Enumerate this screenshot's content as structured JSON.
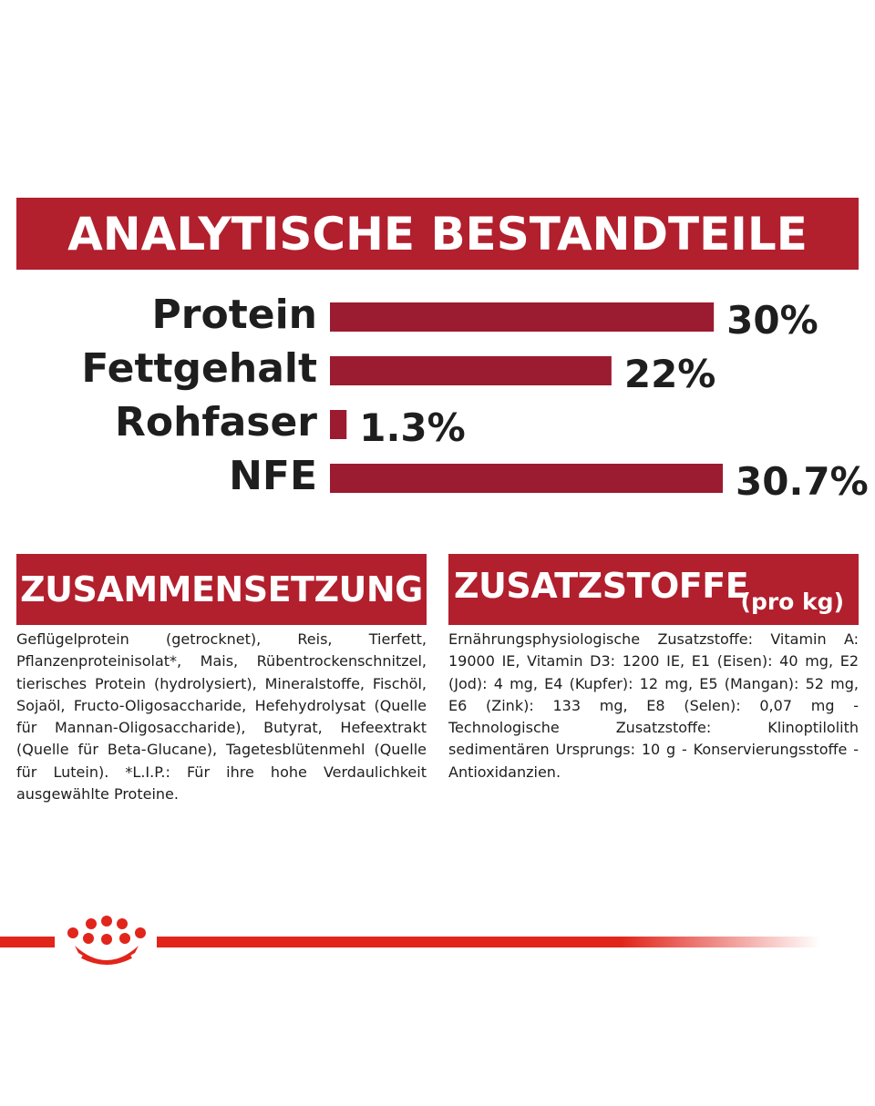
{
  "header": {
    "title": "ANALYTISCHE BESTANDTEILE"
  },
  "chart_data": {
    "type": "bar",
    "orientation": "horizontal",
    "categories": [
      "Protein",
      "Fettgehalt",
      "Rohfaser",
      "NFE"
    ],
    "values": [
      30,
      22,
      1.3,
      30.7
    ],
    "value_labels": [
      "30%",
      "22%",
      "1.3%",
      "30.7%"
    ],
    "unit": "%",
    "title": "ANALYTISCHE BESTANDTEILE",
    "xlabel": "",
    "ylabel": "",
    "xlim": [
      0,
      30.7
    ],
    "grid": false,
    "bar_color": "#9b1b30"
  },
  "composition": {
    "title": "ZUSAMMENSETZUNG",
    "text": "Geflügelprotein (getrocknet), Reis, Tierfett, Pflanzenproteinisolat*, Mais, Rübentrockenschnitzel, tierisches Protein (hydrolysiert), Mineralstoffe, Fischöl, Sojaöl, Fructo-Oligosaccharide, Hefehydrolysat (Quelle für Mannan-Oligosaccharide), Butyrat, Hefeextrakt (Quelle für Beta-Glucane), Tagetesblütenmehl (Quelle für Lutein). *L.I.P.: Für ihre hohe Verdaulichkeit ausgewählte Proteine."
  },
  "additives": {
    "title": "ZUSATZSTOFFE",
    "subtitle": "(pro kg)",
    "text": "Ernährungsphysiologische Zusatzstoffe: Vitamin A: 19000 IE, Vitamin D3: 1200 IE, E1 (Eisen): 40 mg, E2 (Jod): 4 mg, E4 (Kupfer): 12 mg, E5 (Mangan): 52 mg, E6 (Zink): 133 mg, E8 (Selen): 0,07 mg - Technologische Zusatzstoffe: Klinoptilolith sedimentären Ursprungs: 10 g - Konservierungsstoffe - Antioxidanzien."
  },
  "footer": {
    "logo_icon": "crown-icon",
    "accent_color": "#e1251b"
  },
  "colors": {
    "banner": "#b21f2d",
    "bar": "#9b1b30",
    "text": "#1e1e1e"
  }
}
